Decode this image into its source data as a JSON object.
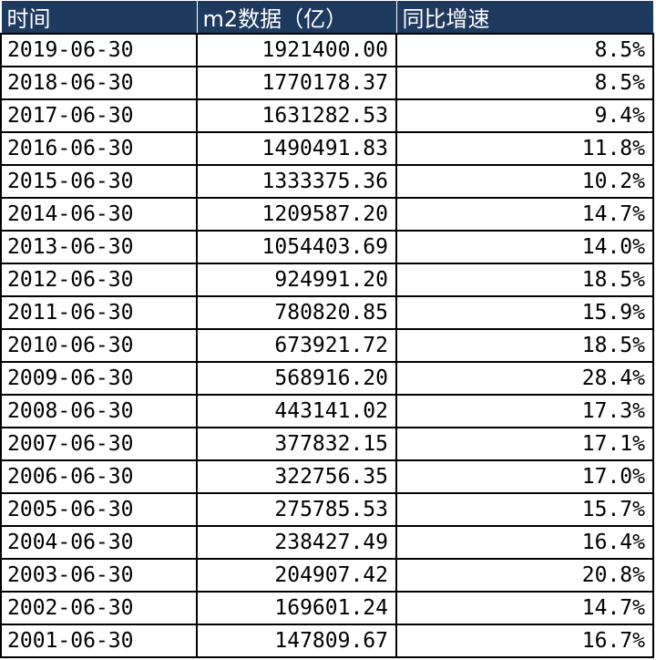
{
  "headers": [
    "时间",
    "m2数据（亿）",
    "同比增速"
  ],
  "rows": [
    [
      "2019-06-30",
      "1921400.00",
      "8.5%"
    ],
    [
      "2018-06-30",
      "1770178.37",
      "8.5%"
    ],
    [
      "2017-06-30",
      "1631282.53",
      "9.4%"
    ],
    [
      "2016-06-30",
      "1490491.83",
      "11.8%"
    ],
    [
      "2015-06-30",
      "1333375.36",
      "10.2%"
    ],
    [
      "2014-06-30",
      "1209587.20",
      "14.7%"
    ],
    [
      "2013-06-30",
      "1054403.69",
      "14.0%"
    ],
    [
      "2012-06-30",
      "924991.20",
      "18.5%"
    ],
    [
      "2011-06-30",
      "780820.85",
      "15.9%"
    ],
    [
      "2010-06-30",
      "673921.72",
      "18.5%"
    ],
    [
      "2009-06-30",
      "568916.20",
      "28.4%"
    ],
    [
      "2008-06-30",
      "443141.02",
      "17.3%"
    ],
    [
      "2007-06-30",
      "377832.15",
      "17.1%"
    ],
    [
      "2006-06-30",
      "322756.35",
      "17.0%"
    ],
    [
      "2005-06-30",
      "275785.53",
      "15.7%"
    ],
    [
      "2004-06-30",
      "238427.49",
      "16.4%"
    ],
    [
      "2003-06-30",
      "204907.42",
      "20.8%"
    ],
    [
      "2002-06-30",
      "169601.24",
      "14.7%"
    ],
    [
      "2001-06-30",
      "147809.67",
      "16.7%"
    ]
  ],
  "colors": {
    "header_bg": "#1f3a5f",
    "header_text": "#ffffff",
    "grid": "#000000"
  }
}
